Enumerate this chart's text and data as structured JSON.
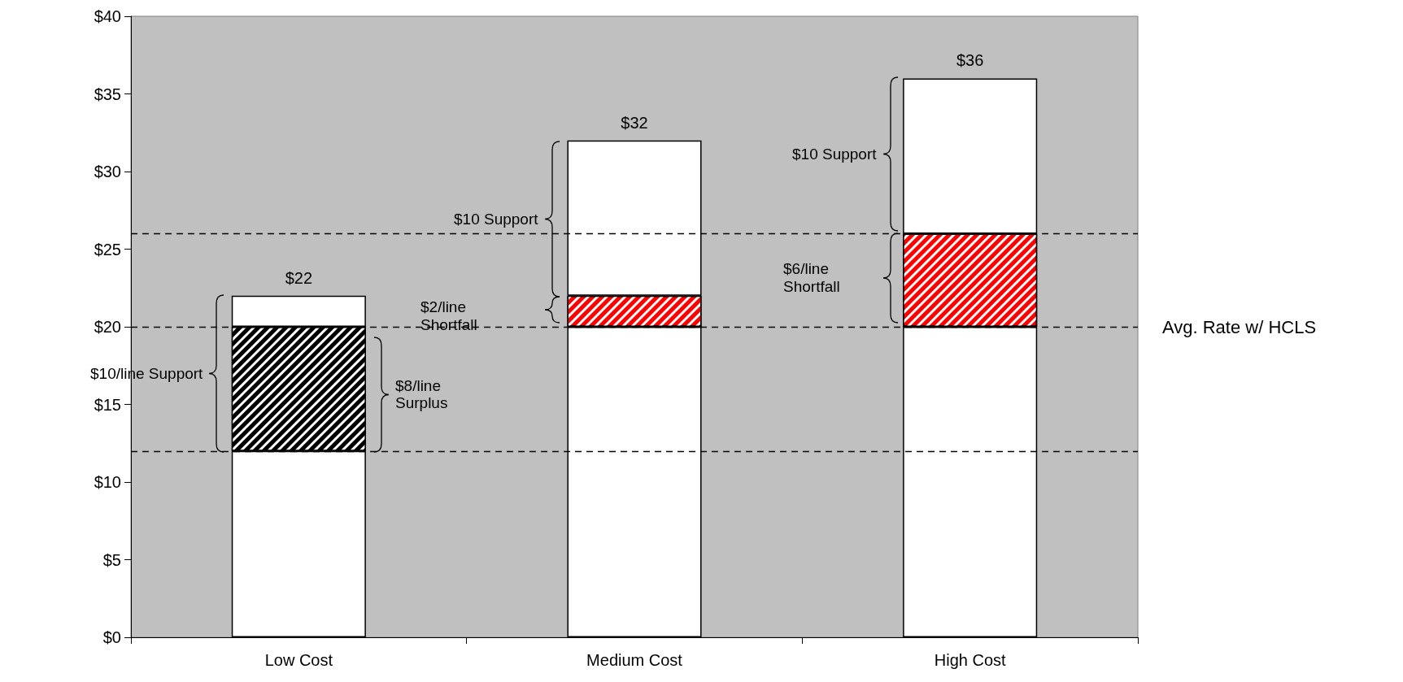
{
  "chart_data": {
    "type": "bar",
    "stacked": true,
    "categories": [
      "Low Cost",
      "Medium Cost",
      "High Cost"
    ],
    "series": [
      {
        "color": "#ffffff",
        "values": [
          12,
          20,
          20
        ]
      },
      {
        "colors": [
          "#000000",
          "#ff0000",
          "#ff0000"
        ],
        "values": [
          8,
          2,
          6
        ]
      },
      {
        "color": "#ffffff",
        "values": [
          2,
          10,
          10
        ]
      }
    ],
    "totals": [
      "$22",
      "$32",
      "$36"
    ],
    "ylim": [
      0,
      40
    ],
    "yticks": [
      {
        "value": 0,
        "label": "$0"
      },
      {
        "value": 5,
        "label": "$5"
      },
      {
        "value": 10,
        "label": "$10"
      },
      {
        "value": 15,
        "label": "$15"
      },
      {
        "value": 20,
        "label": "$20"
      },
      {
        "value": 25,
        "label": "$25"
      },
      {
        "value": 30,
        "label": "$30"
      },
      {
        "value": 35,
        "label": "$35"
      },
      {
        "value": 40,
        "label": "$40"
      }
    ],
    "grid": false,
    "ref_lines": [
      {
        "axis": "y",
        "value": 20,
        "label": "Avg. Rate w/ HCLS",
        "line_style": "dashed"
      },
      {
        "axis": "y",
        "value": 12,
        "line_style": "dashed"
      },
      {
        "axis": "y",
        "value": 26,
        "line_style": "dashed"
      }
    ],
    "annotations": [
      "$10/line Support",
      "$8/line Surplus",
      "$10 Support",
      "$2/line Shortfall",
      "$10 Support",
      "$6/line Shortfall"
    ]
  }
}
